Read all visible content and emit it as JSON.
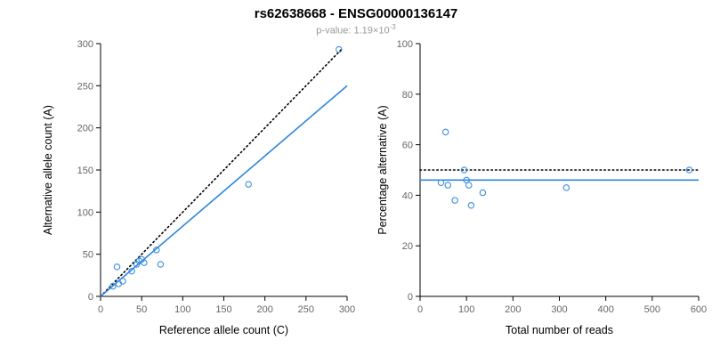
{
  "title": "rs62638668 - ENSG00000136147",
  "subtitle": {
    "label": "p-value: ",
    "mantissa": "1.19×10",
    "exponent": "-3"
  },
  "colors": {
    "point": "#3b8ede",
    "regression": "#2e86de",
    "dotted": "#000000",
    "axis": "#000000",
    "tick_label": "#666666",
    "subtitle_text": "#9a9a9a"
  },
  "chart_data": [
    {
      "type": "scatter",
      "title": "rs62638668 - ENSG00000136147",
      "xlabel": "Reference allele count (C)",
      "ylabel": "Alternative allele count (A)",
      "xlim": [
        0,
        300
      ],
      "ylim": [
        0,
        300
      ],
      "xticks": [
        0,
        50,
        100,
        150,
        200,
        250,
        300
      ],
      "yticks": [
        0,
        50,
        100,
        150,
        200,
        250,
        300
      ],
      "grid": false,
      "points": [
        [
          15,
          12
        ],
        [
          20,
          35
        ],
        [
          22,
          15
        ],
        [
          27,
          18
        ],
        [
          38,
          30
        ],
        [
          44,
          38
        ],
        [
          47,
          42
        ],
        [
          50,
          44
        ],
        [
          53,
          40
        ],
        [
          68,
          55
        ],
        [
          73,
          38
        ],
        [
          180,
          133
        ],
        [
          290,
          293
        ]
      ],
      "lines": [
        {
          "name": "identity-line",
          "style": "dotted",
          "color": "#000000",
          "x1": 0,
          "y1": 0,
          "x2": 293,
          "y2": 293
        },
        {
          "name": "regression-line",
          "style": "solid",
          "color": "#2e86de",
          "x1": 0,
          "y1": 0,
          "x2": 300,
          "y2": 250
        }
      ]
    },
    {
      "type": "scatter",
      "title": "",
      "xlabel": "Total number of reads",
      "ylabel": "Percentage alternative (A)",
      "xlim": [
        0,
        600
      ],
      "ylim": [
        0,
        100
      ],
      "xticks": [
        0,
        100,
        200,
        300,
        400,
        500,
        600
      ],
      "yticks": [
        0,
        20,
        40,
        60,
        80,
        100
      ],
      "grid": false,
      "points": [
        [
          55,
          65
        ],
        [
          45,
          45
        ],
        [
          60,
          44
        ],
        [
          75,
          38
        ],
        [
          95,
          50
        ],
        [
          100,
          46
        ],
        [
          105,
          44
        ],
        [
          110,
          36
        ],
        [
          135,
          41
        ],
        [
          315,
          43
        ],
        [
          580,
          50
        ]
      ],
      "lines": [
        {
          "name": "expected-line",
          "style": "dotted",
          "color": "#000000",
          "x1": 0,
          "y1": 50,
          "x2": 600,
          "y2": 50
        },
        {
          "name": "mean-line",
          "style": "solid",
          "color": "#2e86de",
          "x1": 0,
          "y1": 46,
          "x2": 600,
          "y2": 46
        }
      ]
    }
  ]
}
